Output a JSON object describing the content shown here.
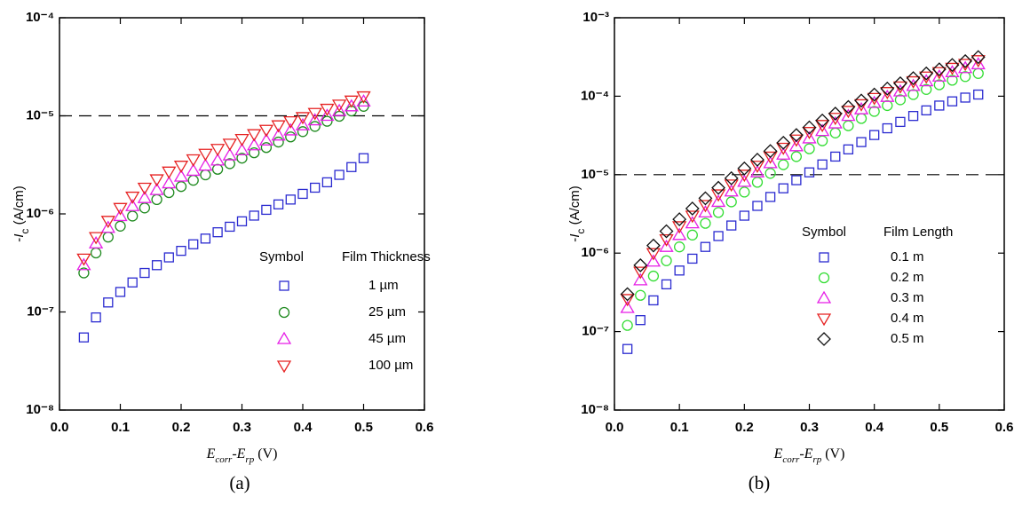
{
  "chart_data": [
    {
      "type": "scatter",
      "caption": "(a)",
      "ylabel": [
        "-",
        "I",
        "c",
        " (A/cm)"
      ],
      "xlabel": [
        "E",
        "corr",
        "-",
        "E",
        "rp",
        " (V)"
      ],
      "log_y": true,
      "ylim": [
        1e-08,
        0.0001
      ],
      "yticks": [
        {
          "value": 1e-08,
          "label": "10⁻⁸"
        },
        {
          "value": 1e-07,
          "label": "10⁻⁷"
        },
        {
          "value": 1e-06,
          "label": "10⁻⁶"
        },
        {
          "value": 1e-05,
          "label": "10⁻⁵"
        },
        {
          "value": 0.0001,
          "label": "10⁻⁴"
        }
      ],
      "xlim": [
        0,
        0.6
      ],
      "xticks": [
        {
          "value": 0,
          "label": "0.0"
        },
        0.1,
        0.2,
        0.3,
        0.4,
        0.5,
        0.6
      ],
      "hline": 1e-05,
      "legend_headers": [
        "Symbol",
        "Film Thickness"
      ],
      "x": [
        0.04,
        0.06,
        0.08,
        0.1,
        0.12,
        0.14,
        0.16,
        0.18,
        0.2,
        0.22,
        0.24,
        0.26,
        0.28,
        0.3,
        0.32,
        0.34,
        0.36,
        0.38,
        0.4,
        0.42,
        0.44,
        0.46,
        0.48,
        0.5
      ],
      "series": [
        {
          "name": "1 µm",
          "marker": "square",
          "color": "#2a2ad0",
          "values": [
            5.5e-08,
            8.8e-08,
            1.25e-07,
            1.6e-07,
            2e-07,
            2.5e-07,
            3e-07,
            3.6e-07,
            4.2e-07,
            4.9e-07,
            5.6e-07,
            6.5e-07,
            7.4e-07,
            8.4e-07,
            9.6e-07,
            1.1e-06,
            1.25e-06,
            1.4e-06,
            1.6e-06,
            1.85e-06,
            2.1e-06,
            2.5e-06,
            3e-06,
            3.7e-06
          ]
        },
        {
          "name": "25 µm",
          "marker": "circle",
          "color": "#1f8a1f",
          "values": [
            2.5e-07,
            4e-07,
            5.8e-07,
            7.5e-07,
            9.5e-07,
            1.15e-06,
            1.4e-06,
            1.65e-06,
            1.9e-06,
            2.2e-06,
            2.5e-06,
            2.85e-06,
            3.25e-06,
            3.7e-06,
            4.2e-06,
            4.75e-06,
            5.4e-06,
            6.1e-06,
            6.9e-06,
            7.8e-06,
            8.8e-06,
            9.9e-06,
            1.12e-05,
            1.25e-05
          ]
        },
        {
          "name": "45 µm",
          "marker": "triangle",
          "color": "#e61ee6",
          "values": [
            3e-07,
            5e-07,
            7.2e-07,
            9.5e-07,
            1.2e-06,
            1.45e-06,
            1.75e-06,
            2.05e-06,
            2.4e-06,
            2.75e-06,
            3.1e-06,
            3.5e-06,
            3.95e-06,
            4.45e-06,
            5e-06,
            5.6e-06,
            6.3e-06,
            7.1e-06,
            8e-06,
            9e-06,
            1e-05,
            1.12e-05,
            1.25e-05,
            1.4e-05
          ]
        },
        {
          "name": "100 µm",
          "marker": "triangle-down",
          "color": "#e62222",
          "values": [
            3.5e-07,
            5.8e-07,
            8.5e-07,
            1.15e-06,
            1.5e-06,
            1.85e-06,
            2.25e-06,
            2.7e-06,
            3.1e-06,
            3.6e-06,
            4.1e-06,
            4.6e-06,
            5.2e-06,
            5.8e-06,
            6.5e-06,
            7.2e-06,
            8e-06,
            8.8e-06,
            9.7e-06,
            1.07e-05,
            1.18e-05,
            1.3e-05,
            1.43e-05,
            1.58e-05
          ]
        }
      ]
    },
    {
      "type": "scatter",
      "caption": "(b)",
      "ylabel": [
        "-",
        "I",
        "c",
        " (A/cm)"
      ],
      "xlabel": [
        "E",
        "corr",
        "-",
        "E",
        "rp",
        " (V)"
      ],
      "log_y": true,
      "ylim": [
        1e-08,
        0.001
      ],
      "yticks": [
        {
          "value": 1e-08,
          "label": "10⁻⁸"
        },
        {
          "value": 1e-07,
          "label": "10⁻⁷"
        },
        {
          "value": 1e-06,
          "label": "10⁻⁶"
        },
        {
          "value": 1e-05,
          "label": "10⁻⁵"
        },
        {
          "value": 0.0001,
          "label": "10⁻⁴"
        },
        {
          "value": 0.001,
          "label": "10⁻³"
        }
      ],
      "xlim": [
        0,
        0.6
      ],
      "xticks": [
        {
          "value": 0,
          "label": "0.0"
        },
        0.1,
        0.2,
        0.3,
        0.4,
        0.5,
        0.6
      ],
      "hline": 1e-05,
      "legend_headers": [
        "Symbol",
        "Film Length"
      ],
      "x": [
        0.02,
        0.04,
        0.06,
        0.08,
        0.1,
        0.12,
        0.14,
        0.16,
        0.18,
        0.2,
        0.22,
        0.24,
        0.26,
        0.28,
        0.3,
        0.32,
        0.34,
        0.36,
        0.38,
        0.4,
        0.42,
        0.44,
        0.46,
        0.48,
        0.5,
        0.52,
        0.54,
        0.56
      ],
      "series": [
        {
          "name": "0.1 m",
          "marker": "square",
          "color": "#2a2ad0",
          "values": [
            6e-08,
            1.4e-07,
            2.5e-07,
            4e-07,
            6e-07,
            8.5e-07,
            1.2e-06,
            1.65e-06,
            2.25e-06,
            3e-06,
            4e-06,
            5.2e-06,
            6.7e-06,
            8.5e-06,
            1.07e-05,
            1.35e-05,
            1.7e-05,
            2.1e-05,
            2.6e-05,
            3.2e-05,
            3.9e-05,
            4.7e-05,
            5.6e-05,
            6.6e-05,
            7.6e-05,
            8.6e-05,
            9.6e-05,
            0.000105
          ]
        },
        {
          "name": "0.2 m",
          "marker": "circle",
          "color": "#33dd33",
          "values": [
            1.2e-07,
            2.9e-07,
            5.1e-07,
            8e-07,
            1.2e-06,
            1.7e-06,
            2.4e-06,
            3.3e-06,
            4.5e-06,
            6e-06,
            8e-06,
            1.04e-05,
            1.34e-05,
            1.7e-05,
            2.14e-05,
            2.7e-05,
            3.4e-05,
            4.2e-05,
            5.2e-05,
            6.4e-05,
            7.6e-05,
            9e-05,
            0.000105,
            0.000122,
            0.00014,
            0.00016,
            0.000178,
            0.000195
          ]
        },
        {
          "name": "0.3 m",
          "marker": "triangle",
          "color": "#e61ee6",
          "values": [
            2e-07,
            4.5e-07,
            7.8e-07,
            1.2e-06,
            1.7e-06,
            2.4e-06,
            3.3e-06,
            4.5e-06,
            6.1e-06,
            8.1e-06,
            1.07e-05,
            1.4e-05,
            1.8e-05,
            2.3e-05,
            2.9e-05,
            3.6e-05,
            4.5e-05,
            5.6e-05,
            6.8e-05,
            8.2e-05,
            9.8e-05,
            0.000115,
            0.000135,
            0.000155,
            0.000178,
            0.000202,
            0.000228,
            0.000255
          ]
        },
        {
          "name": "0.4 m",
          "marker": "triangle-down",
          "color": "#e62222",
          "values": [
            2.6e-07,
            5.8e-07,
            1e-06,
            1.5e-06,
            2.2e-06,
            3e-06,
            4.1e-06,
            5.6e-06,
            7.5e-06,
            1e-05,
            1.3e-05,
            1.7e-05,
            2.2e-05,
            2.8e-05,
            3.5e-05,
            4.3e-05,
            5.3e-05,
            6.5e-05,
            7.9e-05,
            9.5e-05,
            0.000113,
            0.000133,
            0.000155,
            0.000178,
            0.000203,
            0.00023,
            0.000258,
            0.000288
          ]
        },
        {
          "name": "0.5 m",
          "marker": "diamond",
          "color": "#111111",
          "values": [
            3e-07,
            7e-07,
            1.25e-06,
            1.9e-06,
            2.7e-06,
            3.7e-06,
            5e-06,
            6.8e-06,
            9e-06,
            1.2e-05,
            1.55e-05,
            2e-05,
            2.55e-05,
            3.2e-05,
            4e-05,
            4.9e-05,
            6e-05,
            7.3e-05,
            8.8e-05,
            0.000105,
            0.000125,
            0.000146,
            0.00017,
            0.000195,
            0.00022,
            0.00025,
            0.00028,
            0.000315
          ]
        }
      ]
    }
  ]
}
